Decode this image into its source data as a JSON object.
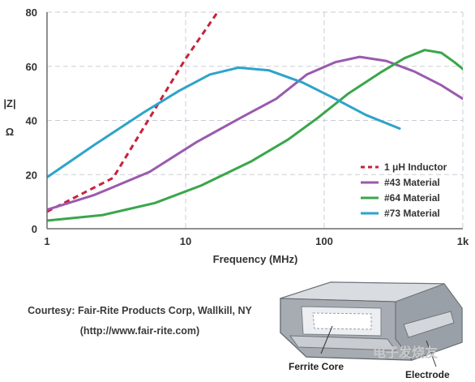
{
  "chart_data": {
    "type": "line",
    "x_scale": "log",
    "xlim": [
      1,
      1000
    ],
    "ylim": [
      0,
      80
    ],
    "x_ticks": [
      {
        "value": 1,
        "label": "1"
      },
      {
        "value": 10,
        "label": "10"
      },
      {
        "value": 100,
        "label": "100"
      },
      {
        "value": 1000,
        "label": "1k"
      }
    ],
    "y_ticks": [
      {
        "value": 0,
        "label": "0"
      },
      {
        "value": 20,
        "label": "20"
      },
      {
        "value": 40,
        "label": "40"
      },
      {
        "value": 60,
        "label": "60"
      },
      {
        "value": 80,
        "label": "80"
      }
    ],
    "xlabel": "Frequency (MHz)",
    "ylabel_top": "|Z|",
    "ylabel_bottom": "Ω",
    "grid": true,
    "legend_position": "bottom-right",
    "series": [
      {
        "name": "1 μH Inductor",
        "color": "#c8223c",
        "dashed": true,
        "points": [
          [
            1,
            6.3
          ],
          [
            3,
            18.8
          ],
          [
            10,
            62.8
          ],
          [
            17,
            80
          ]
        ]
      },
      {
        "name": "#43 Material",
        "color": "#9a5aae",
        "dashed": false,
        "points": [
          [
            1,
            7
          ],
          [
            2.2,
            12.5
          ],
          [
            5.5,
            21
          ],
          [
            12,
            32
          ],
          [
            25,
            41
          ],
          [
            45,
            48
          ],
          [
            75,
            57
          ],
          [
            120,
            61.5
          ],
          [
            180,
            63.5
          ],
          [
            280,
            62
          ],
          [
            450,
            58
          ],
          [
            700,
            53
          ],
          [
            1000,
            48
          ]
        ]
      },
      {
        "name": "#64 Material",
        "color": "#3aa64a",
        "dashed": false,
        "points": [
          [
            1,
            3
          ],
          [
            2.5,
            5
          ],
          [
            6,
            9.5
          ],
          [
            13,
            16
          ],
          [
            30,
            25
          ],
          [
            55,
            33
          ],
          [
            90,
            41
          ],
          [
            150,
            50
          ],
          [
            260,
            58
          ],
          [
            380,
            63
          ],
          [
            530,
            66
          ],
          [
            700,
            65
          ],
          [
            870,
            61.5
          ],
          [
            1000,
            59
          ]
        ]
      },
      {
        "name": "#73 Material",
        "color": "#2ea3cb",
        "dashed": false,
        "points": [
          [
            1,
            19
          ],
          [
            2.2,
            31
          ],
          [
            5,
            43
          ],
          [
            9,
            51
          ],
          [
            15,
            57
          ],
          [
            24,
            59.5
          ],
          [
            40,
            58.5
          ],
          [
            70,
            54
          ],
          [
            120,
            48
          ],
          [
            200,
            42
          ],
          [
            350,
            37
          ]
        ]
      }
    ]
  },
  "courtesy": {
    "line1": "Courtesy: Fair-Rite Products Corp, Wallkill, NY",
    "line2": "(http://www.fair-rite.com)"
  },
  "device_labels": {
    "ferrite_core": "Ferrite Core",
    "electrode": "Electrode"
  },
  "watermark": "电子发烧友"
}
